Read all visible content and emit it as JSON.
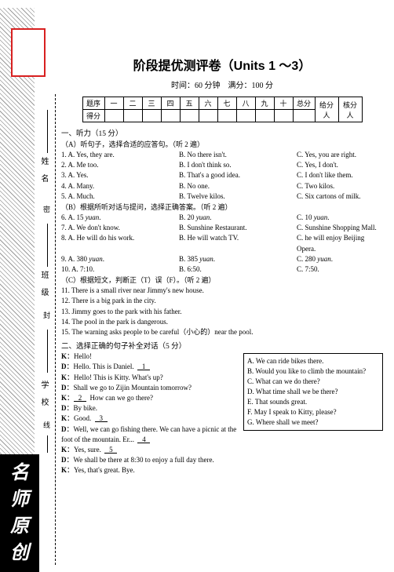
{
  "title": "阶段提优测评卷（Units 1 ～3）",
  "subtitle_time": "时间：60 分钟",
  "subtitle_score": "满分：100 分",
  "score_header": [
    "题序",
    "一",
    "二",
    "三",
    "四",
    "五",
    "六",
    "七",
    "八",
    "九",
    "十",
    "总分",
    "给分人",
    "核分人"
  ],
  "score_row2_label": "得分",
  "side_labels": {
    "name": "姓名",
    "class": "班级",
    "school": "学校"
  },
  "badge": [
    "名",
    "师",
    "原",
    "创"
  ],
  "markers": {
    "seal": "密",
    "fold": "封",
    "cut": "线"
  },
  "sec1": "一、听力（15 分）",
  "secA": "（A）听句子，选择合适的应答句。（听 2 遍）",
  "qa": [
    {
      "a": "1.  A.  Yes, they are.",
      "b": "B.  No there isn't.",
      "c": "C.  Yes, you are right."
    },
    {
      "a": "2.  A.  Me too.",
      "b": "B.  I don't think so.",
      "c": "C.  Yes, I don't."
    },
    {
      "a": "3.  A.  Yes.",
      "b": "B.  That's a good idea.",
      "c": "C.  I don't like them."
    },
    {
      "a": "4.  A.  Many.",
      "b": "B.  No one.",
      "c": "C.  Two kilos."
    },
    {
      "a": "5.  A.  Much.",
      "b": "B.  Twelve kilos.",
      "c": "C.  Six cartons of milk."
    }
  ],
  "secB": "（B）根据所听对话与提问，选择正确答案。（听 2 遍）",
  "qb": [
    {
      "a": "6.  A.  15 yuan.",
      "b": "B.  20 yuan.",
      "c": "C.  10 yuan."
    },
    {
      "a": "7.  A.  We don't know.",
      "b": "B.  Sunshine Restaurant.",
      "c": "C.  Sunshine Shopping Mall."
    },
    {
      "a": "8.  A.  He will do his work.",
      "b": "B.  He will watch TV.",
      "c": "C.  he will enjoy Beijing Opera."
    },
    {
      "a": "9.  A.  380 yuan.",
      "b": "B.  385 yuan.",
      "c": "C.  280 yuan."
    },
    {
      "a": "10.  A.  7:10.",
      "b": "B.  6:50.",
      "c": "C.  7:50."
    }
  ],
  "secC": "（C）根据短文，判断正（T）误（F）。（听 2 遍）",
  "qc": [
    "11.  There is a small river near Jimmy's new house.",
    "12.  There is a big park in the city.",
    "13.  Jimmy goes to the park with his father.",
    "14.  The pool in the park is dangerous.",
    "15.  The warning asks people to be careful（小心的）near the pool."
  ],
  "sec2": "二、选择正确的句子补全对话（5 分）",
  "dialog": [
    {
      "sp": "K",
      "t": "Hello!"
    },
    {
      "sp": "D",
      "t": "Hello.  This is Daniel.",
      "blank": "1"
    },
    {
      "sp": "K",
      "t": "Hello! This is Kitty.  What's up?"
    },
    {
      "sp": "D",
      "t": "Shall we go to Zijin Mountain tomorrow?"
    },
    {
      "sp": "K",
      "blank_pre": "2",
      "t": "How can we go there?"
    },
    {
      "sp": "D",
      "t": "By bike."
    },
    {
      "sp": "K",
      "t": "Good.",
      "blank": "3"
    },
    {
      "sp": "D",
      "t": "Well, we can go fishing there.  We can have a picnic at the foot of the mountain.  Er...",
      "blank": "4"
    },
    {
      "sp": "K",
      "t": "Yes, sure.",
      "blank": "5"
    },
    {
      "sp": "D",
      "t": "We shall be there at 8:30 to enjoy a full day there."
    },
    {
      "sp": "K",
      "t": "Yes, that's great.  Bye."
    }
  ],
  "options": [
    "A.  We can ride bikes there.",
    "B.  Would you like to climb the mountain?",
    "C.  What can we do there?",
    "D.  What time shall we be there?",
    "E.  That sounds great.",
    "F.  May I speak to Kitty, please?",
    "G.  Where shall we meet?"
  ]
}
